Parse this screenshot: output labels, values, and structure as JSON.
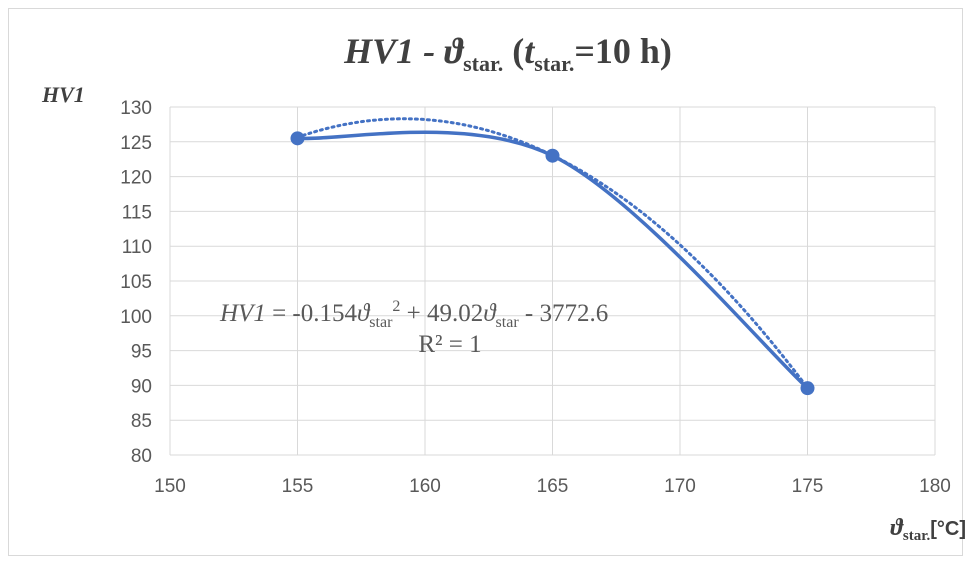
{
  "chart_data": {
    "type": "scatter",
    "title": {
      "prefix": "HV1 - ϑ",
      "prefix_sub": "star.",
      "open": " (",
      "t": "t",
      "t_sub": "star.",
      "rest": "=10 h)"
    },
    "ylabel": "HV1",
    "xlabel": {
      "main": "ϑ",
      "sub": "star.",
      "unit": "[°C]"
    },
    "xlim": [
      150,
      180
    ],
    "ylim": [
      80,
      130
    ],
    "xticks": [
      150,
      155,
      160,
      165,
      170,
      175,
      180
    ],
    "yticks": [
      80,
      85,
      90,
      95,
      100,
      105,
      110,
      115,
      120,
      125,
      130
    ],
    "grid": true,
    "series": [
      {
        "x": [
          155,
          165,
          175
        ],
        "y": [
          125.5,
          123.0,
          89.6
        ]
      }
    ],
    "trendline": {
      "style": "dotted",
      "order": 2,
      "coefficients": [
        -0.154,
        49.02,
        -3772.6
      ]
    },
    "equation": {
      "lhs": "HV1",
      "p1": " = -0.154",
      "v1": "ϑ",
      "s1": "star",
      "sup": "2",
      "p2": " + 49.02",
      "v2": "ϑ",
      "s2": "star",
      "p3": " - 3772.6",
      "r2": "R² = 1"
    },
    "colors": {
      "series": "#4472c4",
      "grid": "#d9d9d9",
      "text": "#404040",
      "ticks": "#595959"
    }
  }
}
